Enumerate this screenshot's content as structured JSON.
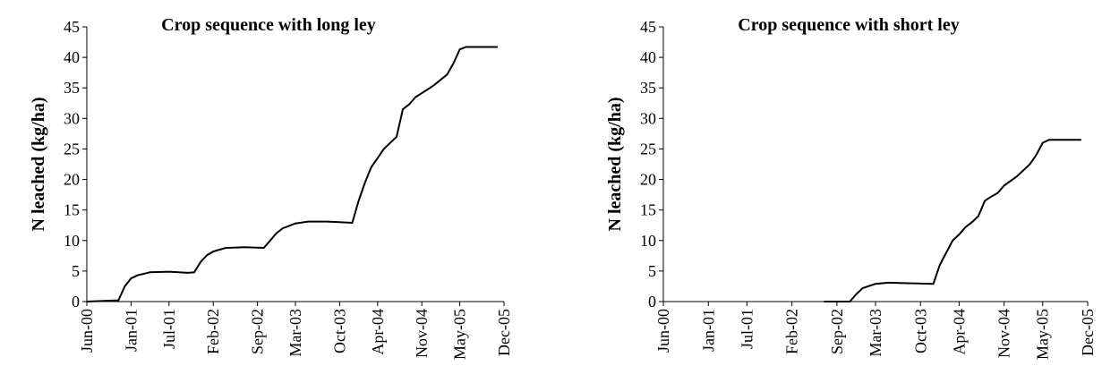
{
  "chart_data": [
    {
      "type": "line",
      "title": "Crop sequence with long ley",
      "y_label": "N leached (kg/ha)",
      "color": "#000000",
      "x": [
        "Jun-00",
        "Nov-00",
        "Dec-00",
        "Jan-01",
        "Feb-01",
        "Apr-01",
        "Jul-01",
        "Oct-01",
        "Nov-01",
        "Dec-01",
        "Jan-02",
        "Feb-02",
        "Apr-02",
        "Jul-02",
        "Oct-02",
        "Nov-02",
        "Dec-02",
        "Jan-03",
        "Mar-03",
        "May-03",
        "Aug-03",
        "Dec-03",
        "Jan-04",
        "Feb-04",
        "Mar-04",
        "Apr-04",
        "May-04",
        "Jun-04",
        "Jul-04",
        "Aug-04",
        "Sep-04",
        "Oct-04",
        "Dec-04",
        "Jan-05",
        "Mar-05",
        "Apr-05",
        "May-05",
        "Jun-05",
        "Nov-05"
      ],
      "values": [
        0,
        0.2,
        2.5,
        3.8,
        4.3,
        4.8,
        4.9,
        4.7,
        4.8,
        6.5,
        7.6,
        8.2,
        8.8,
        8.9,
        8.8,
        10,
        11.2,
        12,
        12.8,
        13.1,
        13.1,
        12.9,
        16.5,
        19.5,
        22,
        23.5,
        25,
        26,
        27,
        31.5,
        32.3,
        33.5,
        34.8,
        35.5,
        37.2,
        39,
        41.3,
        41.7,
        41.7
      ],
      "xlim": [
        "Jun-00",
        "Dec-05"
      ],
      "xticks": [
        "Jun-00",
        "Jan-01",
        "Jul-01",
        "Feb-02",
        "Sep-02",
        "Mar-03",
        "Oct-03",
        "Apr-04",
        "Nov-04",
        "May-05",
        "Dec-05"
      ],
      "ylim": [
        0,
        45
      ],
      "yticks": [
        0,
        5,
        10,
        15,
        20,
        25,
        30,
        35,
        40,
        45
      ]
    },
    {
      "type": "line",
      "title": "Crop sequence with short ley",
      "y_label": "N leached (kg/ha)",
      "color": "#000000",
      "x": [
        "Jul-02",
        "Nov-02",
        "Dec-02",
        "Jan-03",
        "Mar-03",
        "May-03",
        "Aug-03",
        "Dec-03",
        "Jan-04",
        "Feb-04",
        "Mar-04",
        "Apr-04",
        "May-04",
        "Jun-04",
        "Jul-04",
        "Aug-04",
        "Sep-04",
        "Oct-04",
        "Nov-04",
        "Jan-05",
        "Mar-05",
        "Apr-05",
        "May-05",
        "Jun-05",
        "Nov-05"
      ],
      "values": [
        0,
        0,
        1.2,
        2.2,
        2.9,
        3.1,
        3.0,
        2.9,
        6,
        8,
        10,
        11,
        12.2,
        13,
        14,
        16.5,
        17.2,
        17.8,
        19,
        20.5,
        22.5,
        24,
        26,
        26.5,
        26.5
      ],
      "xlim": [
        "Jun-00",
        "Dec-05"
      ],
      "xticks": [
        "Jun-00",
        "Jan-01",
        "Jul-01",
        "Feb-02",
        "Sep-02",
        "Mar-03",
        "Oct-03",
        "Apr-04",
        "Nov-04",
        "May-05",
        "Dec-05"
      ],
      "ylim": [
        0,
        45
      ],
      "yticks": [
        0,
        5,
        10,
        15,
        20,
        25,
        30,
        35,
        40,
        45
      ]
    }
  ]
}
